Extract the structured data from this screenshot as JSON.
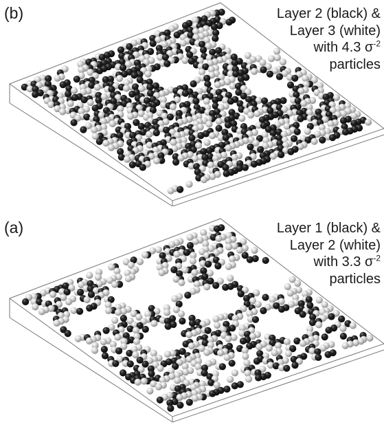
{
  "panels": {
    "b": {
      "label": "(b)",
      "caption": {
        "line1": "Layer 2 (black) &",
        "line2": "Layer 3 (white)",
        "line3_prefix": "with 4.3 σ",
        "line3_exp": "-2",
        "line4": "particles"
      },
      "layers": [
        {
          "name": "Layer 2",
          "color": "black"
        },
        {
          "name": "Layer 3",
          "color": "white"
        }
      ]
    },
    "a": {
      "label": "(a)",
      "caption": {
        "line1": "Layer 1 (black) &",
        "line2": "Layer 2 (white)",
        "line3_prefix": "with 3.3 σ",
        "line3_exp": "-2",
        "line4": "particles"
      },
      "layers": [
        {
          "name": "Layer 1",
          "color": "black"
        },
        {
          "name": "Layer 2",
          "color": "white"
        }
      ]
    }
  },
  "colors": {
    "box_edge": "#777777",
    "black_particle": "#1c1c1c",
    "white_particle": "#d6d6d6"
  }
}
